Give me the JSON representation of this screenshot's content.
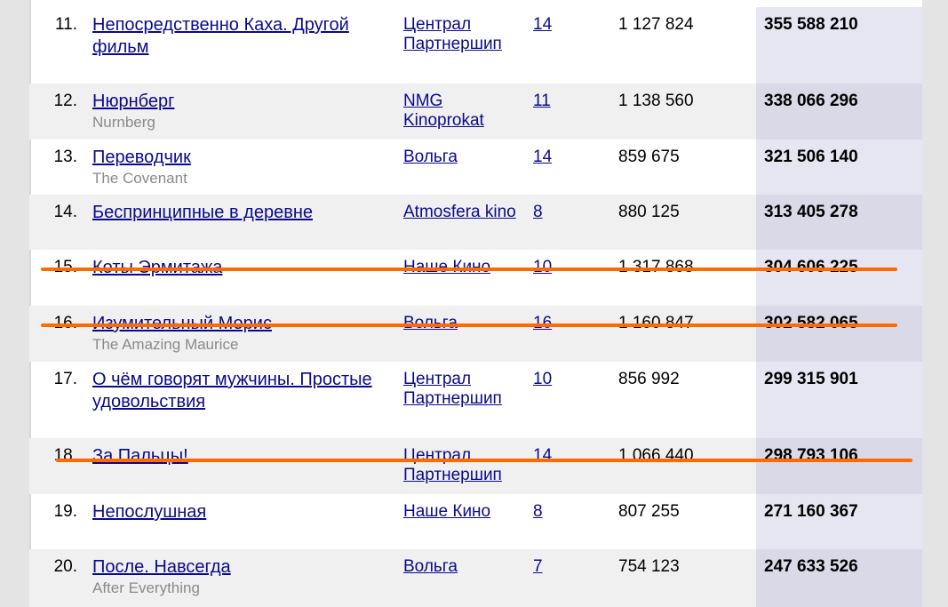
{
  "rows": [
    {
      "rank": "11.",
      "title": "Непосредственно Каха. Другой фильм",
      "original": "",
      "distributor": "Централ Партнершип",
      "screens": "14",
      "admissions": "1 127 824",
      "gross": "355 588 210"
    },
    {
      "rank": "12.",
      "title": "Нюрнберг",
      "original": "Nurnberg",
      "distributor": "NMG Kinoprokat",
      "screens": "11",
      "admissions": "1 138 560",
      "gross": "338 066 296"
    },
    {
      "rank": "13.",
      "title": "Переводчик",
      "original": "The Covenant",
      "distributor": "Вольга",
      "screens": "14",
      "admissions": "859 675",
      "gross": "321 506 140"
    },
    {
      "rank": "14.",
      "title": "Беспринципные в деревне",
      "original": "",
      "distributor": "Atmosfera kino",
      "screens": "8",
      "admissions": "880 125",
      "gross": "313 405 278"
    },
    {
      "rank": "15.",
      "title": "Коты Эрмитажа",
      "original": "",
      "distributor": "Наше Кино",
      "screens": "10",
      "admissions": "1 317 868",
      "gross": "304 606 225"
    },
    {
      "rank": "16.",
      "title": "Изумительный Морис",
      "original": "The Amazing Maurice",
      "distributor": "Вольга",
      "screens": "16",
      "admissions": "1 160 847",
      "gross": "302 582 065"
    },
    {
      "rank": "17.",
      "title": "О чём говорят мужчины. Простые удовольствия",
      "original": "",
      "distributor": "Централ Партнершип",
      "screens": "10",
      "admissions": "856 992",
      "gross": "299 315 901"
    },
    {
      "rank": "18.",
      "title": "За Пальцы!",
      "original": "",
      "distributor": "Централ Партнершип",
      "screens": "14",
      "admissions": "1 066 440",
      "gross": "298 793 106"
    },
    {
      "rank": "19.",
      "title": "Непослушная",
      "original": "",
      "distributor": "Наше Кино",
      "screens": "8",
      "admissions": "807 255",
      "gross": "271 160 367"
    },
    {
      "rank": "20.",
      "title": "После. Навсегда",
      "original": "After Everything",
      "distributor": "Вольга",
      "screens": "7",
      "admissions": "754 123",
      "gross": "247 633 526"
    }
  ],
  "strikethrough": {
    "color": "#ff6a00",
    "struck_ranks": [
      "15.",
      "16.",
      "18."
    ]
  }
}
